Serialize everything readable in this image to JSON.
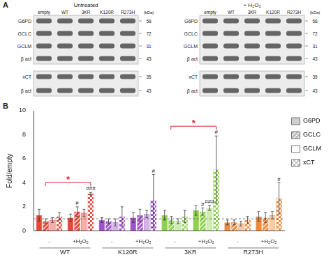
{
  "panel_a": {
    "label": "A",
    "kda_unit": "(kDa)",
    "lanes": [
      "empty",
      "WT",
      "3KR",
      "K120R",
      "R273H"
    ],
    "blots": [
      {
        "title": "Untreated",
        "rows": [
          {
            "name": "G6PD",
            "kda": 58
          },
          {
            "name": "GCLC",
            "kda": 72
          },
          {
            "name": "GCLM",
            "kda": 31
          },
          {
            "name": "β act",
            "kda": 43
          },
          {
            "name": "xCT",
            "kda": 35
          },
          {
            "name": "β act",
            "kda": 43
          }
        ]
      },
      {
        "title": "+ H₂O₂",
        "rows": [
          {
            "name": "G6PD",
            "kda": 58
          },
          {
            "name": "GCLC",
            "kda": 72
          },
          {
            "name": "GCLM",
            "kda": 31
          },
          {
            "name": "β act",
            "kda": 43
          },
          {
            "name": "xCT",
            "kda": 35
          },
          {
            "name": "β act",
            "kda": 43
          }
        ]
      }
    ]
  },
  "panel_b_label": "B",
  "chart_data": {
    "type": "bar",
    "y_label": "Fold/empty",
    "categories": [
      "-",
      "+H₂O₂",
      "-",
      "+H₂O₂",
      "-",
      "+H₂O₂",
      "-",
      "+H₂O₂"
    ],
    "groups": [
      "WT",
      "K120R",
      "3KR",
      "R273H"
    ],
    "ylim": [
      0,
      10
    ],
    "yticks": [
      0,
      2,
      4,
      6,
      8,
      10
    ],
    "grid": false,
    "legend": "top right",
    "hline": 1,
    "series": [
      {
        "name": "G6PD",
        "color": "#cfcfcf",
        "colors": [
          "#e8473c",
          "#e8473c",
          "#a052c8",
          "#a052c8",
          "#8fd14f",
          "#8fd14f",
          "#ef8a3a",
          "#ef8a3a"
        ],
        "values": [
          1.3,
          1.1,
          0.9,
          1.1,
          1.3,
          1.7,
          0.7,
          1.2
        ],
        "errors": [
          0.5,
          0.3,
          0.2,
          0.4,
          0.4,
          0.4,
          0.2,
          0.4
        ],
        "marks": [
          null,
          null,
          null,
          null,
          null,
          null,
          null,
          null
        ]
      },
      {
        "name": "GCLC",
        "color": "#bdbdbd",
        "colors": [
          "#e8473c",
          "#e8473c",
          "#a052c8",
          "#a052c8",
          "#8fd14f",
          "#8fd14f",
          "#ef8a3a",
          "#ef8a3a"
        ],
        "values": [
          0.8,
          1.6,
          0.8,
          1.3,
          0.9,
          1.6,
          0.7,
          1.1
        ],
        "errors": [
          0.2,
          0.4,
          0.2,
          0.5,
          0.3,
          0.3,
          0.2,
          0.4
        ],
        "marks": [
          null,
          "#",
          null,
          null,
          null,
          "#",
          null,
          null
        ]
      },
      {
        "name": "GCLM",
        "color": "#ffffff",
        "colors": [
          "#e8473c",
          "#e8473c",
          "#a052c8",
          "#a052c8",
          "#8fd14f",
          "#8fd14f",
          "#ef8a3a",
          "#ef8a3a"
        ],
        "values": [
          0.9,
          1.5,
          0.7,
          1.4,
          0.8,
          1.9,
          0.6,
          1.3
        ],
        "errors": [
          0.2,
          0.3,
          0.3,
          0.3,
          0.2,
          0.2,
          0.2,
          0.3
        ],
        "marks": [
          null,
          null,
          null,
          null,
          null,
          "###",
          null,
          null
        ]
      },
      {
        "name": "xCT",
        "color": "#bdbdbd",
        "colors": [
          "#e8473c",
          "#e8473c",
          "#a052c8",
          "#a052c8",
          "#8fd14f",
          "#8fd14f",
          "#ef8a3a",
          "#ef8a3a"
        ],
        "values": [
          1.2,
          3.1,
          1.2,
          2.5,
          1.2,
          5.1,
          0.9,
          2.7
        ],
        "errors": [
          0.3,
          0.1,
          0.8,
          2.2,
          0.5,
          2.8,
          0.3,
          1.3
        ],
        "marks": [
          null,
          "###",
          null,
          "#",
          null,
          "#",
          null,
          "#"
        ]
      }
    ],
    "annotations": [
      {
        "from": 0,
        "to": 1,
        "series": "xCT",
        "text": "*"
      },
      {
        "from": 4,
        "to": 5,
        "series": "xCT",
        "text": "*"
      }
    ]
  }
}
